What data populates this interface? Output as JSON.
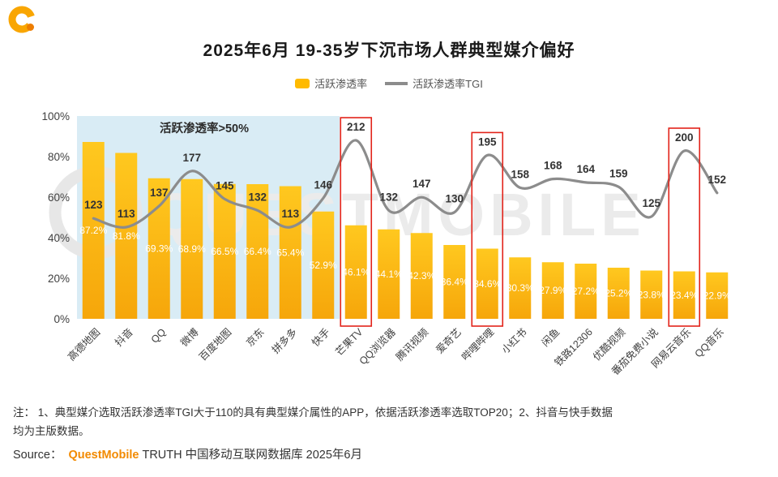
{
  "page": {
    "title": "2025年6月 19-35岁下沉市场人群典型媒介偏好",
    "note_lines": [
      "注：  1、典型媒介选取活跃渗透率TGI大于110的具有典型媒介属性的APP，依据活跃渗透率选取TOP20；2、抖音与快手数据",
      "均为主版数据。"
    ],
    "source": {
      "prefix": "Source：",
      "brand": "QuestMobile",
      "suffix": "TRUTH 中国移动互联网数据库 2025年6月"
    }
  },
  "legend": [
    {
      "label": "活跃渗透率",
      "type": "bar",
      "color": "#FFBA00"
    },
    {
      "label": "活跃渗透率TGI",
      "type": "line",
      "color": "#8C8C8C"
    }
  ],
  "watermark": {
    "text": "QUESTMOBILE"
  },
  "chart_data": {
    "type": "bar+line",
    "title": "2025年6月 19-35岁下沉市场人群典型媒介偏好",
    "categories": [
      "高德地图",
      "抖音",
      "QQ",
      "微博",
      "百度地图",
      "京东",
      "拼多多",
      "快手",
      "芒果TV",
      "QQ浏览器",
      "腾讯视频",
      "爱奇艺",
      "哔哩哔哩",
      "小红书",
      "闲鱼",
      "铁路12306",
      "优酷视频",
      "番茄免费小说",
      "网易云音乐",
      "QQ音乐"
    ],
    "series": [
      {
        "name": "活跃渗透率",
        "type": "bar",
        "unit": "%",
        "values": [
          87.2,
          81.8,
          69.3,
          68.9,
          66.5,
          66.4,
          65.4,
          52.9,
          46.1,
          44.1,
          42.3,
          36.4,
          34.6,
          30.3,
          27.9,
          27.2,
          25.2,
          23.8,
          23.4,
          22.9
        ]
      },
      {
        "name": "活跃渗透率TGI",
        "type": "line",
        "values": [
          123,
          113,
          137,
          177,
          145,
          132,
          113,
          146,
          212,
          132,
          147,
          130,
          195,
          158,
          168,
          164,
          159,
          125,
          200,
          152
        ]
      }
    ],
    "y_axis": {
      "min": 0,
      "max": 100,
      "step": 20,
      "format": "percent",
      "tick_labels": [
        "0%",
        "20%",
        "40%",
        "60%",
        "80%",
        "100%"
      ]
    },
    "annotation": {
      "label": "活跃渗透率>50%",
      "covers_first_n": 8
    },
    "highlight_boxes": {
      "indices": [
        8,
        12,
        18
      ],
      "color": "#E2231A"
    },
    "legend_position": "top",
    "grid": false,
    "colors": {
      "bar": "#FFBA00",
      "bar_gradient_top": "#FFC81F",
      "bar_gradient_bottom": "#F6A60A",
      "line": "#8C8C8C",
      "annotation_bg": "#D9ECF5",
      "highlight_box": "#E2231A",
      "brand_orange": "#F28A00"
    }
  }
}
